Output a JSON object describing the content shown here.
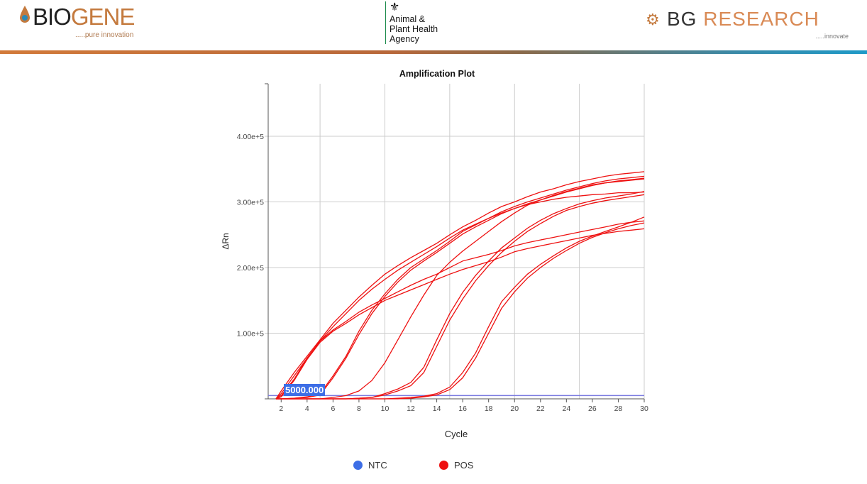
{
  "header": {
    "biogene": {
      "word_dark": "BIO",
      "word_accent": "GENE",
      "tagline": ".....pure innovation"
    },
    "apha": {
      "lines": [
        "Animal &",
        "Plant Health",
        "Agency"
      ]
    },
    "bg_research": {
      "word_dark": "BG",
      "word_accent": " RESEARCH",
      "tagline": ".....innovate"
    }
  },
  "colors": {
    "pos": "#ee1111",
    "ntc": "#3d6ee6",
    "threshold": "#7a7ae0",
    "grid": "#cccccc"
  },
  "threshold_label": "5000.000",
  "legend": [
    {
      "label": "NTC",
      "color": "#3d6ee6"
    },
    {
      "label": "POS",
      "color": "#ee1111"
    }
  ],
  "chart_data": {
    "type": "line",
    "title": "Amplification Plot",
    "xlabel": "Cycle",
    "ylabel": "ΔRn",
    "xlim": [
      1,
      30
    ],
    "ylim": [
      0,
      480000
    ],
    "xticks": [
      "2",
      "4",
      "6",
      "8",
      "10",
      "12",
      "14",
      "16",
      "18",
      "20",
      "22",
      "24",
      "26",
      "28",
      "30"
    ],
    "yticks": [
      {
        "value": 100000,
        "label": "1.00e+5"
      },
      {
        "value": 200000,
        "label": "2.00e+5"
      },
      {
        "value": 300000,
        "label": "3.00e+5"
      },
      {
        "value": 400000,
        "label": "4.00e+5"
      }
    ],
    "xgrid": [
      5,
      10,
      15,
      20,
      25,
      30
    ],
    "grid": true,
    "legend_position": "bottom",
    "threshold": 5000,
    "x": [
      2,
      3,
      4,
      5,
      6,
      7,
      8,
      9,
      10,
      11,
      12,
      13,
      14,
      15,
      16,
      17,
      18,
      19,
      20,
      21,
      22,
      23,
      24,
      25,
      26,
      27,
      28,
      29,
      30
    ],
    "series": [
      {
        "group": "POS",
        "values": [
          12000,
          40000,
          65000,
          90000,
          115000,
          135000,
          155000,
          173000,
          190000,
          203000,
          215000,
          226000,
          237000,
          250000,
          262000,
          272000,
          283000,
          293000,
          300000,
          308000,
          315000,
          320000,
          326000,
          331000,
          335000,
          339000,
          342000,
          344000,
          346000
        ]
      },
      {
        "group": "POS",
        "values": [
          8000,
          35000,
          62000,
          88000,
          110000,
          130000,
          150000,
          167000,
          182000,
          196000,
          208000,
          220000,
          232000,
          245000,
          257000,
          266000,
          275000,
          283000,
          290000,
          296000,
          300000,
          304000,
          307000,
          309000,
          311000,
          312000,
          314000,
          314000,
          315000
        ]
      },
      {
        "group": "POS",
        "values": [
          5000,
          30000,
          62000,
          88000,
          105000,
          118000,
          132000,
          143000,
          153000,
          163000,
          173000,
          182000,
          190000,
          200000,
          210000,
          215000,
          220000,
          226000,
          233000,
          238000,
          242000,
          246000,
          250000,
          254000,
          258000,
          262000,
          266000,
          269000,
          271000
        ]
      },
      {
        "group": "POS",
        "values": [
          3000,
          28000,
          60000,
          86000,
          103000,
          115000,
          128000,
          139000,
          150000,
          158000,
          166000,
          174000,
          182000,
          190000,
          197000,
          203000,
          209000,
          216000,
          224000,
          229000,
          233000,
          237000,
          241000,
          245000,
          249000,
          252000,
          255000,
          257000,
          259000
        ]
      },
      {
        "group": "POS",
        "values": [
          0,
          1000,
          3000,
          8000,
          35000,
          65000,
          103000,
          135000,
          160000,
          182000,
          200000,
          213000,
          226000,
          240000,
          255000,
          265000,
          275000,
          285000,
          293000,
          300000,
          306000,
          312000,
          318000,
          323000,
          328000,
          332000,
          335000,
          337000,
          339000
        ]
      },
      {
        "group": "POS",
        "values": [
          0,
          1000,
          2000,
          6000,
          32000,
          62000,
          98000,
          130000,
          156000,
          178000,
          196000,
          210000,
          223000,
          237000,
          251000,
          262000,
          272000,
          282000,
          290000,
          297000,
          303000,
          309000,
          315000,
          320000,
          325000,
          329000,
          332000,
          334000,
          336000
        ]
      },
      {
        "group": "POS",
        "values": [
          0,
          0,
          0,
          0,
          2000,
          5000,
          12000,
          28000,
          55000,
          90000,
          125000,
          158000,
          188000,
          208000,
          225000,
          240000,
          255000,
          270000,
          283000,
          295000,
          303000,
          310000,
          316000,
          321000,
          326000,
          329000,
          331000,
          333000,
          335000
        ]
      },
      {
        "group": "POS",
        "values": [
          0,
          0,
          0,
          0,
          0,
          0,
          1000,
          2000,
          8000,
          15000,
          25000,
          48000,
          90000,
          130000,
          162000,
          188000,
          210000,
          230000,
          245000,
          260000,
          272000,
          282000,
          290000,
          297000,
          302000,
          306000,
          309000,
          312000,
          316000
        ]
      },
      {
        "group": "POS",
        "values": [
          0,
          0,
          0,
          0,
          0,
          0,
          1000,
          2000,
          6000,
          12000,
          20000,
          40000,
          80000,
          120000,
          152000,
          180000,
          203000,
          223000,
          240000,
          255000,
          267000,
          278000,
          287000,
          293000,
          298000,
          302000,
          305000,
          308000,
          311000
        ]
      },
      {
        "group": "POS",
        "values": [
          0,
          0,
          0,
          0,
          0,
          0,
          0,
          0,
          0,
          1000,
          2000,
          4000,
          8000,
          18000,
          40000,
          70000,
          110000,
          148000,
          170000,
          190000,
          205000,
          218000,
          230000,
          240000,
          248000,
          255000,
          262000,
          269000,
          277000
        ]
      },
      {
        "group": "POS",
        "values": [
          0,
          0,
          0,
          0,
          0,
          0,
          0,
          0,
          0,
          0,
          1000,
          3000,
          6000,
          14000,
          32000,
          62000,
          100000,
          138000,
          163000,
          184000,
          200000,
          214000,
          226000,
          237000,
          246000,
          253000,
          259000,
          264000,
          268000
        ]
      }
    ]
  }
}
